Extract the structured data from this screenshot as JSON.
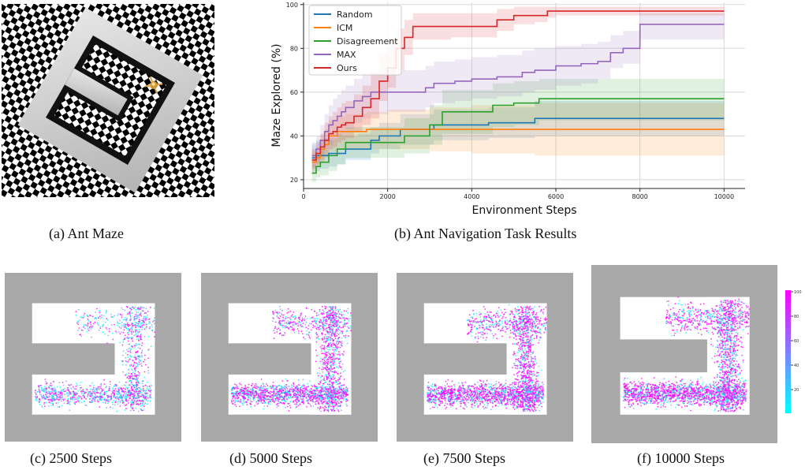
{
  "captions": {
    "a": "(a)  Ant Maze",
    "b": "(b)  Ant Navigation Task Results",
    "c": "(c)  2500 Steps",
    "d": "(d)  5000 Steps",
    "e": "(e)  7500 Steps",
    "f": "(f)  10000 Steps"
  },
  "colorbar": {
    "ticks": [
      "100",
      "80",
      "60",
      "40",
      "20"
    ],
    "colors": [
      "#ff00ff",
      "#00ffff"
    ]
  },
  "chart_data": [
    {
      "type": "line",
      "title": "",
      "xlabel": "Environment Steps",
      "ylabel": "Maze Explored (%)",
      "xlim": [
        0,
        10500
      ],
      "ylim": [
        16,
        101
      ],
      "xticks": [
        0,
        2000,
        4000,
        6000,
        8000,
        10000
      ],
      "yticks": [
        20,
        40,
        60,
        80,
        100
      ],
      "grid": true,
      "legend_position": "top-left",
      "series": [
        {
          "name": "Random",
          "color": "#1f77b4",
          "x": [
            200,
            300,
            400,
            500,
            600,
            800,
            1000,
            1300,
            1600,
            1800,
            2000,
            2300,
            2700,
            3100,
            3800,
            4400,
            5500,
            10000
          ],
          "y": [
            30,
            31,
            31,
            31,
            32,
            32,
            34,
            34,
            38,
            40,
            40,
            43,
            43,
            45,
            45,
            46,
            48,
            48
          ],
          "lower": [
            23,
            24,
            25,
            25,
            26,
            27,
            29,
            29,
            32,
            34,
            34,
            36,
            36,
            38,
            38,
            39,
            40,
            40
          ],
          "upper": [
            37,
            38,
            38,
            39,
            39,
            40,
            40,
            41,
            44,
            46,
            46,
            50,
            50,
            52,
            52,
            53,
            56,
            56
          ]
        },
        {
          "name": "ICM",
          "color": "#ff7f0e",
          "x": [
            200,
            300,
            400,
            500,
            600,
            800,
            1000,
            1500,
            2000,
            3000,
            4000,
            5500,
            10000
          ],
          "y": [
            28,
            30,
            34,
            36,
            40,
            42,
            42,
            43,
            43,
            43,
            43,
            43,
            43
          ],
          "lower": [
            24,
            26,
            28,
            30,
            33,
            34,
            34,
            34,
            34,
            33,
            32,
            31,
            31
          ],
          "upper": [
            33,
            35,
            40,
            43,
            47,
            49,
            50,
            51,
            52,
            53,
            54,
            55,
            55
          ]
        },
        {
          "name": "Disagreement",
          "color": "#2ca02c",
          "x": [
            200,
            300,
            400,
            600,
            800,
            1000,
            1300,
            1600,
            2000,
            2400,
            2800,
            3000,
            3300,
            3800,
            4500,
            5000,
            5600,
            10000
          ],
          "y": [
            23,
            26,
            28,
            31,
            34,
            37,
            37,
            37,
            37,
            40,
            40,
            45,
            51,
            51,
            54,
            55,
            57,
            57
          ],
          "lower": [
            19,
            21,
            22,
            24,
            27,
            30,
            30,
            30,
            30,
            32,
            32,
            36,
            41,
            41,
            44,
            45,
            47,
            47
          ],
          "upper": [
            27,
            31,
            34,
            38,
            41,
            44,
            44,
            44,
            44,
            48,
            48,
            54,
            61,
            61,
            64,
            65,
            66,
            66
          ]
        },
        {
          "name": "MAX",
          "color": "#9467bd",
          "x": [
            200,
            300,
            400,
            500,
            600,
            700,
            800,
            900,
            1000,
            1200,
            1400,
            1600,
            2000,
            2600,
            2900,
            3100,
            3300,
            3600,
            4000,
            4600,
            5200,
            5500,
            6000,
            6600,
            7000,
            7300,
            7600,
            8000,
            10000
          ],
          "y": [
            31,
            34,
            38,
            42,
            45,
            47,
            49,
            51,
            53,
            56,
            58,
            60,
            60,
            60,
            62,
            64,
            64,
            65,
            66,
            67,
            69,
            70,
            72,
            73,
            74,
            78,
            80,
            91,
            91
          ],
          "lower": [
            26,
            28,
            31,
            34,
            36,
            38,
            40,
            41,
            43,
            46,
            48,
            50,
            51,
            51,
            53,
            55,
            55,
            56,
            57,
            58,
            60,
            61,
            63,
            64,
            66,
            71,
            73,
            84,
            84
          ],
          "upper": [
            36,
            40,
            45,
            50,
            54,
            57,
            59,
            61,
            63,
            66,
            68,
            70,
            70,
            70,
            72,
            74,
            74,
            75,
            76,
            77,
            79,
            80,
            81,
            82,
            83,
            86,
            88,
            96,
            96
          ]
        },
        {
          "name": "Ours",
          "color": "#d62728",
          "x": [
            200,
            300,
            400,
            500,
            600,
            700,
            800,
            900,
            1000,
            1200,
            1400,
            1600,
            1800,
            2000,
            2200,
            2400,
            2600,
            3000,
            3500,
            4000,
            4600,
            5000,
            5500,
            5800,
            6000,
            10000
          ],
          "y": [
            29,
            32,
            35,
            38,
            41,
            42,
            44,
            45,
            46,
            49,
            53,
            57,
            65,
            71,
            80,
            85,
            90,
            90,
            90,
            90,
            93,
            95,
            95,
            97,
            97,
            97
          ],
          "lower": [
            25,
            27,
            29,
            31,
            34,
            35,
            37,
            38,
            39,
            42,
            45,
            48,
            56,
            62,
            70,
            77,
            84,
            84,
            85,
            85,
            88,
            91,
            92,
            94,
            95,
            95
          ],
          "upper": [
            34,
            37,
            41,
            46,
            49,
            51,
            53,
            55,
            56,
            59,
            63,
            69,
            78,
            84,
            89,
            93,
            96,
            96,
            96,
            96,
            98,
            99,
            99,
            99,
            99,
            99
          ]
        }
      ]
    }
  ]
}
